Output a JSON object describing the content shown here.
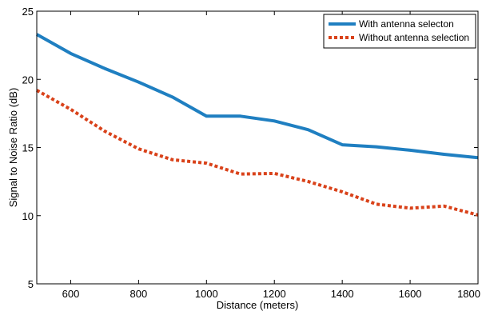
{
  "chart_data": {
    "type": "line",
    "xlabel": "Distance (meters)",
    "ylabel": "Signal to Noise Ratio (dB)",
    "xlim": [
      500,
      1800
    ],
    "ylim": [
      5,
      25
    ],
    "xticks": [
      600,
      800,
      1000,
      1200,
      1400,
      1600,
      1800
    ],
    "yticks": [
      5,
      10,
      15,
      20,
      25
    ],
    "grid": false,
    "legend_position": "top-right",
    "series": [
      {
        "name": "With antenna selecton",
        "color": "#1f7fc1",
        "style": "solid",
        "x": [
          500,
          600,
          700,
          800,
          900,
          1000,
          1100,
          1200,
          1300,
          1400,
          1500,
          1600,
          1700,
          1800
        ],
        "y": [
          23.3,
          21.9,
          20.8,
          19.8,
          18.7,
          17.3,
          17.3,
          16.95,
          16.3,
          15.2,
          15.05,
          14.8,
          14.5,
          14.25
        ]
      },
      {
        "name": "Without antenna selection",
        "color": "#d9421a",
        "style": "dotted",
        "x": [
          500,
          600,
          700,
          800,
          900,
          1000,
          1100,
          1200,
          1300,
          1400,
          1500,
          1600,
          1700,
          1800
        ],
        "y": [
          19.2,
          17.8,
          16.2,
          14.9,
          14.1,
          13.85,
          13.05,
          13.1,
          12.5,
          11.75,
          10.85,
          10.55,
          10.7,
          10.05
        ]
      }
    ]
  }
}
